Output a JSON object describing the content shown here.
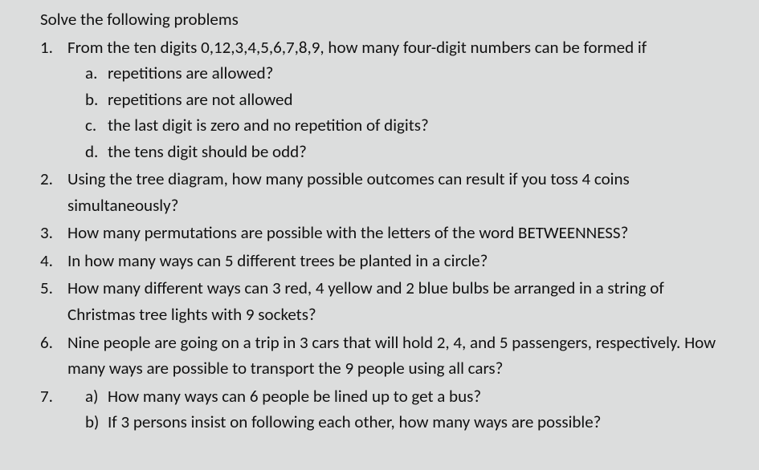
{
  "background_color": "#dcdddd",
  "text_color": "#111111",
  "font_family": "Calibri",
  "font_size_pt": 16,
  "heading": "Solve the following problems",
  "questions": [
    {
      "text": "From the ten digits 0,12,3,4,5,6,7,8,9, how many four-digit numbers can be formed if",
      "sub_style": "dot",
      "sub": [
        "repetitions are allowed?",
        "repetitions are not allowed",
        "the last digit is zero and no repetition of digits?",
        "the tens digit should be odd?"
      ]
    },
    {
      "text": "Using the tree diagram, how many possible outcomes can result if you toss 4 coins simultaneously?"
    },
    {
      "text": "How many permutations are possible with the letters of the word BETWEENNESS?"
    },
    {
      "text": "In how many ways can 5 different trees be planted in a circle?"
    },
    {
      "text": "How many different ways can 3 red, 4 yellow and 2 blue bulbs be arranged in a string of Christmas tree lights with 9  sockets?"
    },
    {
      "text": "Nine people are going on a trip in 3 cars that will hold 2, 4, and 5 passengers, respectively. How many ways are possible to transport the 9 people using all cars?"
    },
    {
      "text": "",
      "sub_style": "paren",
      "indent_sub": true,
      "sub": [
        "How many ways can 6 people be lined up to get a bus?",
        "If 3 persons insist on following each other, how many ways are possible?"
      ]
    }
  ]
}
